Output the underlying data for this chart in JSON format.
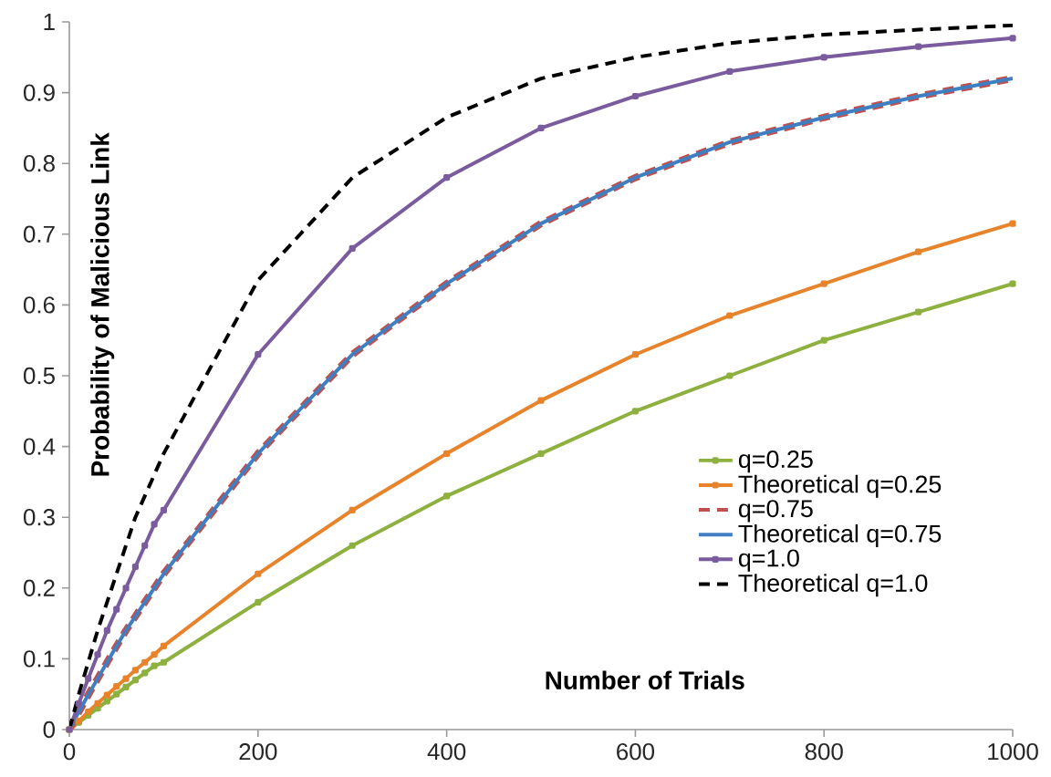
{
  "chart_data": {
    "type": "line",
    "xlabel": "Number of Trials",
    "ylabel": "Probability of Malicious Link",
    "x": [
      0,
      10,
      20,
      30,
      40,
      50,
      60,
      70,
      80,
      90,
      100,
      200,
      300,
      400,
      500,
      600,
      700,
      800,
      900,
      1000
    ],
    "series": [
      {
        "name": "q=0.25",
        "color": "#8db03f",
        "line_style": "solid",
        "marker": "square",
        "values": [
          0,
          0.01,
          0.02,
          0.03,
          0.04,
          0.05,
          0.06,
          0.07,
          0.08,
          0.09,
          0.095,
          0.18,
          0.26,
          0.33,
          0.39,
          0.45,
          0.5,
          0.55,
          0.59,
          0.63
        ]
      },
      {
        "name": "Theoretical q=0.25",
        "color": "#e7832a",
        "line_style": "solid",
        "marker": "square",
        "values": [
          0,
          0.012,
          0.025,
          0.037,
          0.049,
          0.061,
          0.072,
          0.084,
          0.095,
          0.106,
          0.118,
          0.22,
          0.31,
          0.39,
          0.465,
          0.53,
          0.585,
          0.63,
          0.675,
          0.715
        ]
      },
      {
        "name": "q=0.75",
        "color": "#c0504d",
        "line_style": "dashed",
        "values": [
          0,
          0.025,
          0.049,
          0.072,
          0.095,
          0.118,
          0.14,
          0.16,
          0.18,
          0.2,
          0.22,
          0.39,
          0.53,
          0.63,
          0.715,
          0.78,
          0.83,
          0.865,
          0.895,
          0.92
        ]
      },
      {
        "name": "Theoretical q=0.75",
        "color": "#3f7ec0",
        "line_style": "solid",
        "values": [
          0,
          0.025,
          0.049,
          0.072,
          0.095,
          0.118,
          0.14,
          0.16,
          0.18,
          0.2,
          0.22,
          0.39,
          0.53,
          0.63,
          0.715,
          0.78,
          0.83,
          0.865,
          0.895,
          0.92
        ]
      },
      {
        "name": "q=1.0",
        "color": "#7a5c9e",
        "line_style": "solid",
        "marker": "square",
        "values": [
          0,
          0.037,
          0.072,
          0.106,
          0.14,
          0.17,
          0.2,
          0.23,
          0.26,
          0.29,
          0.31,
          0.53,
          0.68,
          0.78,
          0.85,
          0.895,
          0.93,
          0.95,
          0.965,
          0.977
        ]
      },
      {
        "name": "Theoretical q=1.0",
        "color": "#000000",
        "line_style": "dashed",
        "values": [
          0,
          0.05,
          0.095,
          0.14,
          0.18,
          0.22,
          0.26,
          0.3,
          0.33,
          0.36,
          0.39,
          0.635,
          0.78,
          0.865,
          0.92,
          0.95,
          0.97,
          0.982,
          0.989,
          0.995
        ]
      }
    ],
    "xlim": [
      0,
      1000
    ],
    "ylim": [
      0,
      1
    ],
    "xticks": [
      0,
      200,
      400,
      600,
      800,
      1000
    ],
    "yticks": [
      0,
      0.1,
      0.2,
      0.3,
      0.4,
      0.5,
      0.6,
      0.7,
      0.8,
      0.9,
      1
    ],
    "grid": false,
    "legend": "bottom right"
  }
}
